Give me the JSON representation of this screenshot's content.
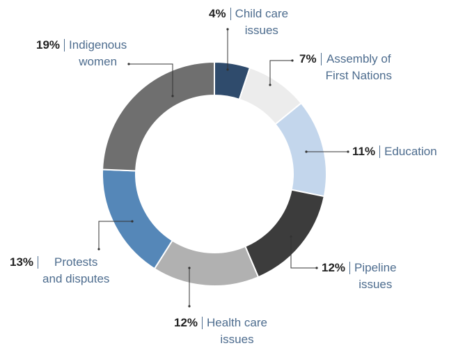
{
  "chart_data": {
    "type": "donut",
    "categories": [
      "Child care\nissues",
      "Assembly of\nFirst Nations",
      "Education",
      "Pipeline\nissues",
      "Health care\nissues",
      "Protests\nand disputes",
      "Indigenous\nwomen"
    ],
    "values": [
      4,
      7,
      11,
      12,
      12,
      13,
      19
    ],
    "value_labels": [
      "4%",
      "7%",
      "11%",
      "12%",
      "12%",
      "13%",
      "19%"
    ],
    "colors": [
      "#2f4b6c",
      "#ececec",
      "#c3d6ec",
      "#3c3c3c",
      "#b1b1b1",
      "#5587b8",
      "#6f6f6f"
    ]
  }
}
